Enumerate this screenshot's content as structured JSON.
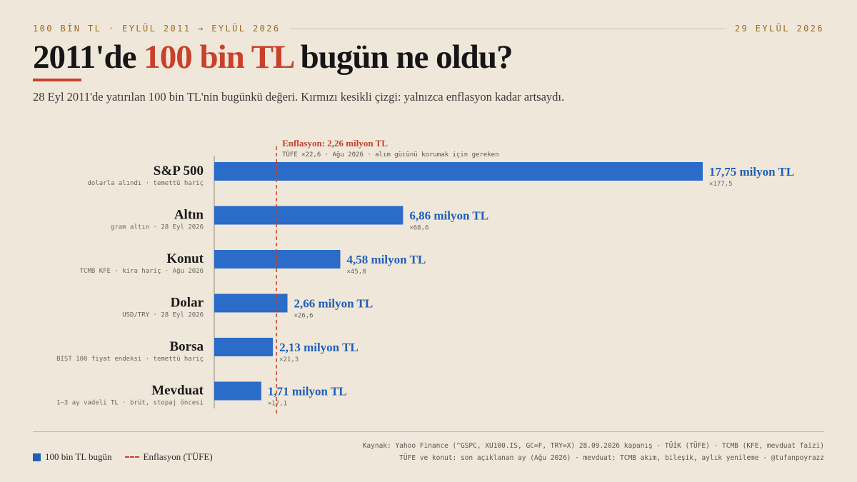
{
  "header": {
    "kicker_left": "100 BİN TL · EYLÜL 2011 → EYLÜL 2026",
    "kicker_right": "29 EYLÜL 2026",
    "title_part1": "2011'de ",
    "title_accent": "100 bin TL",
    "title_part2": " bugün ne oldu?",
    "subtitle": "28 Eyl 2011'de yatırılan 100 bin TL'nin bugünkü değeri. Kırmızı kesikli çizgi: yalnızca enflasyon kadar artsaydı."
  },
  "colors": {
    "bar": "#2a6cc7",
    "accent": "#c8412a",
    "value_text": "#1f5fb8"
  },
  "chart_data": {
    "type": "bar",
    "orientation": "horizontal",
    "unit": "milyon TL",
    "xlim": [
      0,
      17.75
    ],
    "categories": [
      "S&P 500",
      "Altın",
      "Konut",
      "Dolar",
      "Borsa",
      "Mevduat"
    ],
    "notes": [
      "dolarla alındı · temettü hariç",
      "gram altın · 28 Eyl 2026",
      "TCMB KFE · kira hariç · Ağu 2026",
      "USD/TRY · 28 Eyl 2026",
      "BIST 100 fiyat endeksi · temettü hariç",
      "1–3 ay vadeli TL · brüt, stopaj öncesi"
    ],
    "values": [
      17.75,
      6.86,
      4.58,
      2.66,
      2.13,
      1.71
    ],
    "value_labels": [
      "17,75 milyon TL",
      "6,86 milyon TL",
      "4,58 milyon TL",
      "2,66 milyon TL",
      "2,13 milyon TL",
      "1,71 milyon TL"
    ],
    "multipliers": [
      "×177,5",
      "×68,6",
      "×45,8",
      "×26,6",
      "×21,3",
      "×17,1"
    ],
    "reference_line": {
      "value": 2.26,
      "label": "Enflasyon: 2,26 milyon TL",
      "sublabel": "TÜFE ×22,6 · Ağu 2026 · alım gücünü korumak için gereken"
    },
    "legend": [
      {
        "name": "100 bin TL bugün",
        "style": "bar"
      },
      {
        "name": "Enflasyon (TÜFE)",
        "style": "dashed-line"
      }
    ],
    "legend_position": "bottom-left",
    "grid": false
  },
  "footer": {
    "source_line1": "Kaynak: Yahoo Finance (^GSPC, XU100.IS, GC=F, TRY=X) 28.09.2026 kapanış · TÜİK (TÜFE) · TCMB (KFE, mevduat faizi)",
    "source_line2": "TÜFE ve konut: son açıklanan ay (Ağu 2026) · mevduat: TCMB akım, bileşik, aylık yenileme · @tufanpoyrazz"
  }
}
